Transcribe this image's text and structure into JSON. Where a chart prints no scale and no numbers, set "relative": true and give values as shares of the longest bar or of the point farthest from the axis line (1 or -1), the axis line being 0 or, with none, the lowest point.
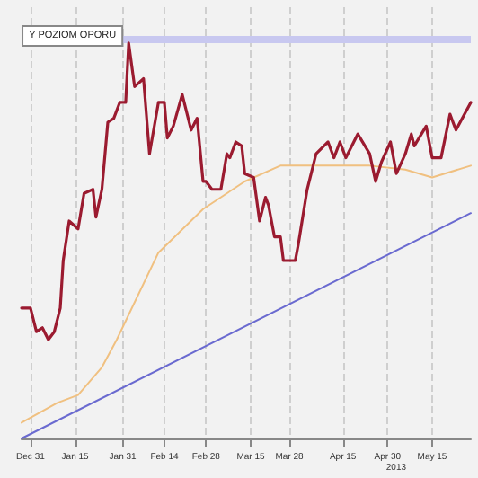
{
  "chart_data": {
    "type": "line",
    "relative": true,
    "grid": true,
    "marker": "none",
    "line_style": "solid",
    "xlim": [
      "2012-12-28",
      "2013-05-28"
    ],
    "xticks": [
      {
        "value": "2012-12-31",
        "label": "Dec 31"
      },
      {
        "value": "2013-01-15",
        "label": "Jan 15"
      },
      {
        "value": "2013-01-31",
        "label": "Jan 31"
      },
      {
        "value": "2013-02-14",
        "label": "Feb 14"
      },
      {
        "value": "2013-02-28",
        "label": "Feb 28"
      },
      {
        "value": "2013-03-15",
        "label": "Mar 15"
      },
      {
        "value": "2013-03-28",
        "label": "Mar 28"
      },
      {
        "value": "2013-04-15",
        "label": "Apr 15"
      },
      {
        "value": "2013-04-30",
        "label": "Apr 30"
      },
      {
        "value": "2013-05-15",
        "label": "May 15"
      }
    ],
    "annotations": [
      {
        "text": "Y POZIOM OPORU",
        "x": "2013-02-02",
        "y": 1
      },
      "2013"
    ],
    "ref_lines": [
      {
        "axis": "y",
        "value": 1.01,
        "color": "#c8c8f0"
      }
    ],
    "series": [
      {
        "color": "#9b1b30",
        "x": [
          "2012-12-28",
          "2012-12-31",
          "2013-01-02",
          "2013-01-04",
          "2013-01-06",
          "2013-01-08",
          "2013-01-10",
          "2013-01-11",
          "2013-01-13",
          "2013-01-16",
          "2013-01-18",
          "2013-01-21",
          "2013-01-22",
          "2013-01-24",
          "2013-01-26",
          "2013-01-28",
          "2013-01-30",
          "2013-02-01",
          "2013-02-02",
          "2013-02-04",
          "2013-02-07",
          "2013-02-09",
          "2013-02-12",
          "2013-02-14",
          "2013-02-15",
          "2013-02-17",
          "2013-02-20",
          "2013-02-23",
          "2013-02-25",
          "2013-02-27",
          "2013-02-28",
          "2013-03-02",
          "2013-03-05",
          "2013-03-07",
          "2013-03-08",
          "2013-03-10",
          "2013-03-12",
          "2013-03-13",
          "2013-03-16",
          "2013-03-18",
          "2013-03-20",
          "2013-03-21",
          "2013-03-23",
          "2013-03-25",
          "2013-03-26",
          "2013-03-30",
          "2013-03-31",
          "2013-04-03",
          "2013-04-06",
          "2013-04-10",
          "2013-04-12",
          "2013-04-14",
          "2013-04-16",
          "2013-04-20",
          "2013-04-24",
          "2013-04-26",
          "2013-04-28",
          "2013-05-01",
          "2013-05-03",
          "2013-05-06",
          "2013-05-08",
          "2013-05-09",
          "2013-05-13",
          "2013-05-15",
          "2013-05-18",
          "2013-05-21",
          "2013-05-23",
          "2013-05-28"
        ],
        "values": [
          0.33,
          0.33,
          0.27,
          0.28,
          0.25,
          0.27,
          0.33,
          0.45,
          0.55,
          0.53,
          0.62,
          0.63,
          0.56,
          0.63,
          0.8,
          0.81,
          0.85,
          0.85,
          1,
          0.89,
          0.91,
          0.72,
          0.85,
          0.85,
          0.76,
          0.79,
          0.87,
          0.78,
          0.81,
          0.65,
          0.65,
          0.63,
          0.63,
          0.72,
          0.71,
          0.75,
          0.74,
          0.67,
          0.66,
          0.55,
          0.61,
          0.59,
          0.51,
          0.51,
          0.45,
          0.45,
          0.49,
          0.63,
          0.72,
          0.75,
          0.71,
          0.75,
          0.71,
          0.77,
          0.72,
          0.65,
          0.7,
          0.75,
          0.67,
          0.72,
          0.77,
          0.74,
          0.79,
          0.71,
          0.71,
          0.82,
          0.78,
          0.85
        ]
      },
      {
        "color": "#f0c080",
        "x": [
          "2012-12-28",
          "2013-01-09",
          "2013-01-16",
          "2013-01-24",
          "2013-01-29",
          "2013-02-12",
          "2013-02-27",
          "2013-03-13",
          "2013-03-25",
          "2013-04-07",
          "2013-04-24",
          "2013-05-06",
          "2013-05-15",
          "2013-05-28"
        ],
        "values": [
          0.04,
          0.09,
          0.11,
          0.18,
          0.25,
          0.47,
          0.58,
          0.65,
          0.69,
          0.69,
          0.69,
          0.68,
          0.66,
          0.69
        ]
      },
      {
        "color": "#6a6ad0",
        "x": [
          "2012-12-28",
          "2013-05-28"
        ],
        "values": [
          0,
          0.57
        ]
      }
    ]
  }
}
